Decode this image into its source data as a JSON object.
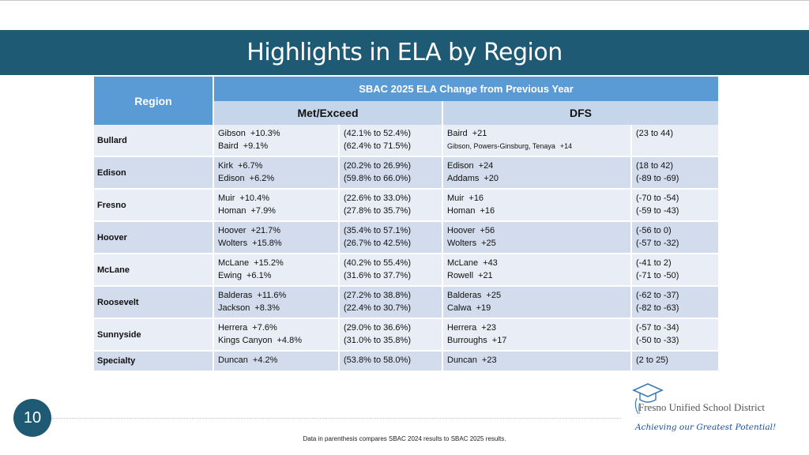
{
  "slide": {
    "title": "Highlights in ELA by Region",
    "page_number": "10",
    "footnote": "Data in parenthesis compares SBAC 2024 results to SBAC 2025 results."
  },
  "table": {
    "region_header": "Region",
    "group_header": "SBAC 2025 ELA Change from Previous Year",
    "met_header": "Met/Exceed",
    "dfs_header": "DFS",
    "rows": [
      {
        "region": "Bullard",
        "met": [
          {
            "school": "Gibson",
            "change": "+10.3%"
          },
          {
            "school": "Baird",
            "change": "+9.1%"
          }
        ],
        "met_range": [
          "(42.1% to 52.4%)",
          "(62.4% to 71.5%)"
        ],
        "dfs": [
          {
            "school": "Baird",
            "change": "+21"
          },
          {
            "school": "Gibson, Powers-Ginsburg, Tenaya",
            "change": "+14"
          }
        ],
        "dfs_range": [
          "(23 to 44)",
          ""
        ]
      },
      {
        "region": "Edison",
        "met": [
          {
            "school": "Kirk",
            "change": "+6.7%"
          },
          {
            "school": "Edison",
            "change": "+6.2%"
          }
        ],
        "met_range": [
          "(20.2% to 26.9%)",
          "(59.8% to 66.0%)"
        ],
        "dfs": [
          {
            "school": "Edison",
            "change": "+24"
          },
          {
            "school": "Addams",
            "change": "+20"
          }
        ],
        "dfs_range": [
          "(18 to 42)",
          "(-89 to -69)"
        ]
      },
      {
        "region": "Fresno",
        "met": [
          {
            "school": "Muir",
            "change": "+10.4%"
          },
          {
            "school": "Homan",
            "change": "+7.9%"
          }
        ],
        "met_range": [
          "(22.6% to 33.0%)",
          "(27.8% to 35.7%)"
        ],
        "dfs": [
          {
            "school": "Muir",
            "change": "+16"
          },
          {
            "school": "Homan",
            "change": "+16"
          }
        ],
        "dfs_range": [
          "(-70 to -54)",
          "(-59 to -43)"
        ]
      },
      {
        "region": "Hoover",
        "met": [
          {
            "school": "Hoover",
            "change": "+21.7%"
          },
          {
            "school": "Wolters",
            "change": "+15.8%"
          }
        ],
        "met_range": [
          "(35.4% to 57.1%)",
          "(26.7% to 42.5%)"
        ],
        "dfs": [
          {
            "school": "Hoover",
            "change": "+56"
          },
          {
            "school": "Wolters",
            "change": "+25"
          }
        ],
        "dfs_range": [
          "(-56 to 0)",
          "(-57 to -32)"
        ]
      },
      {
        "region": "McLane",
        "met": [
          {
            "school": "McLane",
            "change": "+15.2%"
          },
          {
            "school": "Ewing",
            "change": "+6.1%"
          }
        ],
        "met_range": [
          "(40.2% to 55.4%)",
          "(31.6% to 37.7%)"
        ],
        "dfs": [
          {
            "school": "McLane",
            "change": "+43"
          },
          {
            "school": "Rowell",
            "change": "+21"
          }
        ],
        "dfs_range": [
          "(-41 to 2)",
          "(-71 to -50)"
        ]
      },
      {
        "region": "Roosevelt",
        "met": [
          {
            "school": "Balderas",
            "change": "+11.6%"
          },
          {
            "school": "Jackson",
            "change": "+8.3%"
          }
        ],
        "met_range": [
          "(27.2% to 38.8%)",
          "(22.4% to 30.7%)"
        ],
        "dfs": [
          {
            "school": "Balderas",
            "change": "+25"
          },
          {
            "school": "Calwa",
            "change": "+19"
          }
        ],
        "dfs_range": [
          "(-62 to -37)",
          "(-82 to -63)"
        ]
      },
      {
        "region": "Sunnyside",
        "met": [
          {
            "school": "Herrera",
            "change": "+7.6%"
          },
          {
            "school": "Kings Canyon",
            "change": "+4.8%"
          }
        ],
        "met_range": [
          "(29.0% to 36.6%)",
          "(31.0% to 35.8%)"
        ],
        "dfs": [
          {
            "school": "Herrera",
            "change": "+23"
          },
          {
            "school": "Burroughs",
            "change": "+17"
          }
        ],
        "dfs_range": [
          "(-57 to -34)",
          "(-50 to -33)"
        ]
      },
      {
        "region": "Specialty",
        "met": [
          {
            "school": "Duncan",
            "change": "+4.2%"
          }
        ],
        "met_range": [
          "(53.8% to 58.0%)"
        ],
        "dfs": [
          {
            "school": "Duncan",
            "change": "+23"
          }
        ],
        "dfs_range": [
          "(2 to 25)"
        ]
      }
    ]
  },
  "logo": {
    "name": "Fresno Unified School District",
    "tagline": "Achieving our Greatest Potential!"
  },
  "colors": {
    "title_bar": "#1f5a75",
    "header_blue": "#5b9bd5",
    "subheader": "#c5d6eb",
    "row_light": "#e9edf5",
    "row_dark": "#d3dcec"
  }
}
